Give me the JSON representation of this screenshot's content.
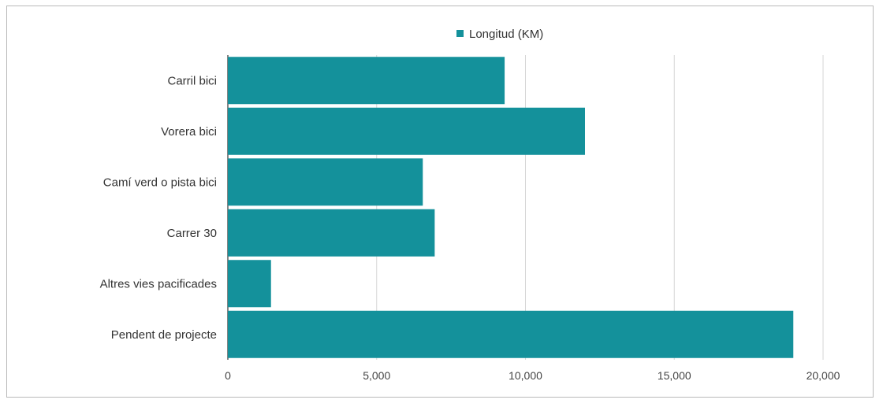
{
  "chart_data": {
    "type": "bar",
    "orientation": "horizontal",
    "categories": [
      "Carril bici",
      "Vorera bici",
      "Camí verd o pista bici",
      "Carrer 30",
      "Altres vies pacificades",
      "Pendent de projecte"
    ],
    "series": [
      {
        "name": "Longitud (KM)",
        "color": "#14919b",
        "values": [
          9300,
          12000,
          6550,
          6950,
          1450,
          19000
        ]
      }
    ],
    "xlim": [
      0,
      20000
    ],
    "xticks": [
      0,
      5000,
      10000,
      15000,
      20000
    ],
    "xtick_labels": [
      "0",
      "5,000",
      "10,000",
      "15,000",
      "20,000"
    ],
    "grid": true,
    "legend_position": "top"
  }
}
